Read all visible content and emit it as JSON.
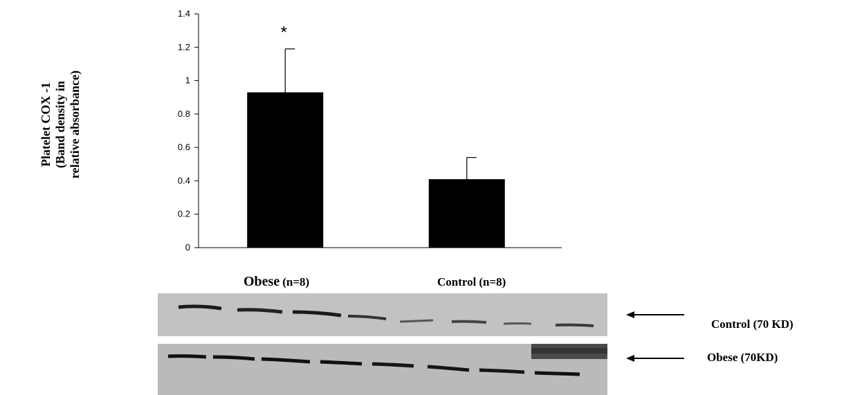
{
  "chart_data": {
    "type": "bar",
    "categories": [
      "Obese",
      "Control"
    ],
    "values": [
      0.93,
      0.41
    ],
    "error_bars": [
      0.26,
      0.13
    ],
    "ylim": [
      0,
      1.4
    ],
    "y_ticks": [
      "0",
      "0.2",
      "0.4",
      "0.6",
      "0.8",
      "1",
      "1.2",
      "1.4"
    ],
    "ylabel": [
      "Platelet COX -1",
      "(Band density in",
      "relative absorbance)"
    ],
    "annotations": [
      {
        "category": "Obese",
        "text": "*"
      }
    ],
    "bar_color": "#000000",
    "grid": false,
    "category_labels": [
      {
        "name": "Obese",
        "n": "(n=8)"
      },
      {
        "name": "Control",
        "n": "(n=8)"
      }
    ],
    "blots": [
      {
        "label": "Control (70 KD)"
      },
      {
        "label": "Obese (70KD)"
      }
    ]
  }
}
